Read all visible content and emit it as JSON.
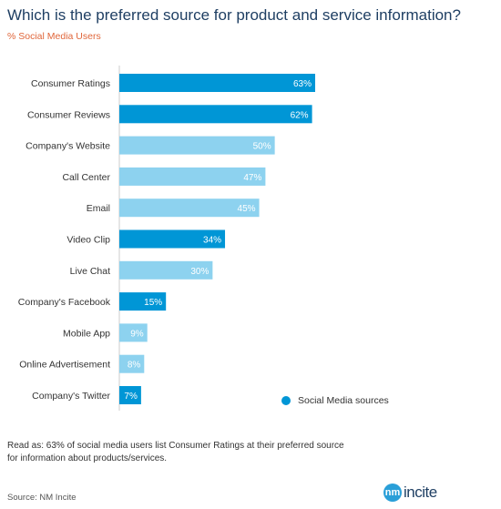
{
  "title": "Which is the preferred source for product and service information?",
  "subtitle": "% Social Media Users",
  "colors": {
    "social": "#0096d6",
    "other": "#8dd2ef",
    "title": "#1f3f63",
    "subtitle": "#e0663a"
  },
  "chart_data": {
    "type": "bar",
    "orientation": "horizontal",
    "categories": [
      "Consumer Ratings",
      "Consumer Reviews",
      "Company's Website",
      "Call Center",
      "Email",
      "Video Clip",
      "Live Chat",
      "Company's Facebook",
      "Mobile App",
      "Online Advertisement",
      "Company's Twitter"
    ],
    "values": [
      63,
      62,
      50,
      47,
      45,
      34,
      30,
      15,
      9,
      8,
      7
    ],
    "value_labels": [
      "63%",
      "62%",
      "50%",
      "47%",
      "45%",
      "34%",
      "30%",
      "15%",
      "9%",
      "8%",
      "7%"
    ],
    "social_media_source": [
      true,
      true,
      false,
      false,
      false,
      true,
      false,
      true,
      false,
      false,
      true
    ],
    "xlim": [
      0,
      100
    ],
    "grid": false,
    "legend_position": "bottom-right"
  },
  "legend": {
    "label": "Social Media sources"
  },
  "note": "Read as: 63% of social media users list Consumer Ratings at their preferred source for information about products/services.",
  "source": "Source: NM Incite",
  "logo": {
    "badge": "nm",
    "text": "incite"
  }
}
